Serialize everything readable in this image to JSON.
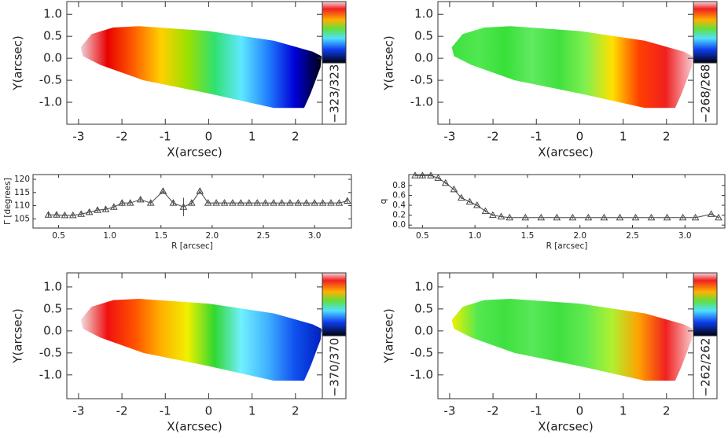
{
  "chart_data": [
    {
      "type": "map",
      "xlabel": "X(arcsec)",
      "ylabel": "Y(arcsec)",
      "colorbar_label": "−323/323",
      "colors": [
        "#f2d0d8",
        "#e80000",
        "#ff6000",
        "#ffd000",
        "#9be000",
        "#30e070",
        "#60e8ff",
        "#2080ff",
        "#0000d8",
        "#000010"
      ],
      "xlim": [
        -3.27,
        2.62
      ],
      "ylim": [
        -1.5,
        1.29
      ],
      "xticks": [
        -3,
        -2,
        -1,
        0,
        1,
        2
      ],
      "yticks": [
        {
          "value": 1,
          "label": "1.0"
        },
        0.5,
        {
          "value": 0,
          "label": "0.0"
        },
        -0.5,
        {
          "value": -1,
          "label": "-1.0"
        }
      ]
    },
    {
      "type": "map",
      "xlabel": "X(arcsec)",
      "ylabel": "Y(arcsec)",
      "colorbar_label": "−268/268",
      "colors": [
        "#40e040",
        "#50e850",
        "#38e038",
        "#60ea60",
        "#40e040",
        "#80f050",
        "#ffe000",
        "#ff4000",
        "#f02020",
        "#f8c8d0"
      ],
      "xlim": [
        -3.27,
        2.62
      ],
      "ylim": [
        -1.5,
        1.29
      ],
      "xticks": [
        -3,
        -2,
        -1,
        0,
        1,
        2
      ],
      "yticks": [
        {
          "value": 1,
          "label": "1.0"
        },
        0.5,
        {
          "value": 0,
          "label": "0.0"
        },
        -0.5,
        {
          "value": -1,
          "label": "-1.0"
        }
      ]
    },
    {
      "type": "line",
      "xlabel": "R [arcsec]",
      "ylabel": "Γ [degrees]",
      "color": "#444",
      "x": [
        0.4,
        0.48,
        0.56,
        0.64,
        0.72,
        0.8,
        0.88,
        0.96,
        1.04,
        1.12,
        1.2,
        1.3,
        1.4,
        1.52,
        1.62,
        1.72,
        1.8,
        1.88,
        1.96,
        2.04,
        2.12,
        2.2,
        2.28,
        2.36,
        2.44,
        2.52,
        2.6,
        2.68,
        2.76,
        2.84,
        2.92,
        3.0,
        3.08,
        3.16,
        3.24,
        3.32
      ],
      "values": [
        106.5,
        106.5,
        106.3,
        106.3,
        106.8,
        107.5,
        108.3,
        108.6,
        109.5,
        111.0,
        111.0,
        112.3,
        111.0,
        115.5,
        111.0,
        109.5,
        111.0,
        115.5,
        111.0,
        111.0,
        111.0,
        111.0,
        111.0,
        111.0,
        111.0,
        111.0,
        111.0,
        111.0,
        111.0,
        111.0,
        111.0,
        111.0,
        111.0,
        111.0,
        111.0,
        111.8
      ],
      "errors": [
        0.8,
        0.8,
        0.6,
        0.6,
        0.7,
        0.8,
        0.8,
        0.8,
        0.8,
        1.2,
        1.0,
        0.8,
        0.8,
        0.8,
        0.8,
        3.5,
        0.8,
        0.8,
        0.5,
        0.5,
        0.5,
        0.5,
        0.5,
        0.5,
        0.5,
        0.5,
        0.5,
        0.5,
        0.5,
        0.5,
        0.5,
        0.5,
        0.5,
        0.5,
        0.5,
        0.8
      ],
      "xlim": [
        0.25,
        3.36
      ],
      "ylim": [
        101.5,
        121.8
      ],
      "xticks": [
        0.5,
        {
          "value": 1,
          "label": "1.0"
        },
        1.5,
        {
          "value": 2,
          "label": "2.0"
        },
        2.5,
        {
          "value": 3,
          "label": "3.0"
        }
      ],
      "yticks": [
        105,
        110,
        115,
        120
      ]
    },
    {
      "type": "line",
      "xlabel": "R [arcsec]",
      "ylabel": "q",
      "color": "#444",
      "x": [
        0.43,
        0.5,
        0.58,
        0.65,
        0.72,
        0.8,
        0.87,
        0.95,
        1.02,
        1.1,
        1.17,
        1.25,
        1.33,
        1.48,
        1.63,
        1.78,
        1.93,
        2.08,
        2.23,
        2.38,
        2.53,
        2.68,
        2.83,
        2.98,
        3.1,
        3.25,
        3.32
      ],
      "values": [
        1.0,
        1.0,
        1.0,
        0.95,
        0.85,
        0.72,
        0.55,
        0.47,
        0.4,
        0.28,
        0.2,
        0.17,
        0.15,
        0.15,
        0.15,
        0.15,
        0.15,
        0.15,
        0.15,
        0.15,
        0.15,
        0.15,
        0.15,
        0.15,
        0.15,
        0.22,
        0.15
      ],
      "errors": [
        0.02,
        0.02,
        0.02,
        0.02,
        0.02,
        0.02,
        0.02,
        0.02,
        0.02,
        0.02,
        0.02,
        0.02,
        0.02,
        0.02,
        0.02,
        0.02,
        0.02,
        0.02,
        0.02,
        0.02,
        0.02,
        0.02,
        0.02,
        0.02,
        0.02,
        0.02,
        0.02
      ],
      "xlim": [
        0.37,
        3.38
      ],
      "ylim": [
        -0.06,
        1.02
      ],
      "xticks": [
        0.5,
        {
          "value": 1,
          "label": "1.0"
        },
        1.5,
        {
          "value": 2,
          "label": "2.0"
        },
        2.5,
        {
          "value": 3,
          "label": "3.0"
        }
      ],
      "yticks": [
        {
          "value": 0,
          "label": "0.0"
        },
        0.2,
        0.4,
        0.6,
        0.8
      ]
    },
    {
      "type": "map",
      "xlabel": "X(arcsec)",
      "ylabel": "Y(arcsec)",
      "colorbar_label": "−370/370",
      "colors": [
        "#f0e0e0",
        "#f01010",
        "#ff5000",
        "#ffb000",
        "#f0f000",
        "#30d830",
        "#70f0ff",
        "#40b0ff",
        "#1050f0",
        "#0020c0"
      ],
      "xlim": [
        -3.27,
        2.62
      ],
      "ylim": [
        -1.54,
        1.32
      ],
      "xticks": [
        -3,
        -2,
        -1,
        0,
        1,
        2
      ],
      "yticks": [
        {
          "value": 1,
          "label": "1.0"
        },
        0.5,
        {
          "value": 0,
          "label": "0.0"
        },
        -0.5,
        {
          "value": -1,
          "label": "-1.0"
        }
      ]
    },
    {
      "type": "map",
      "xlabel": "X(arcsec)",
      "ylabel": "Y(arcsec)",
      "colorbar_label": "−262/262",
      "colors": [
        "#f0f000",
        "#50e850",
        "#40e040",
        "#58e858",
        "#40e040",
        "#60ea50",
        "#b0f030",
        "#ffa000",
        "#f02020",
        "#f8c8c8"
      ],
      "xlim": [
        -3.27,
        2.62
      ],
      "ylim": [
        -1.54,
        1.32
      ],
      "xticks": [
        -3,
        -2,
        -1,
        0,
        1,
        2
      ],
      "yticks": [
        {
          "value": 1,
          "label": "1.0"
        },
        0.5,
        {
          "value": 0,
          "label": "0.0"
        },
        -0.5,
        {
          "value": -1,
          "label": "-1.0"
        }
      ]
    }
  ]
}
